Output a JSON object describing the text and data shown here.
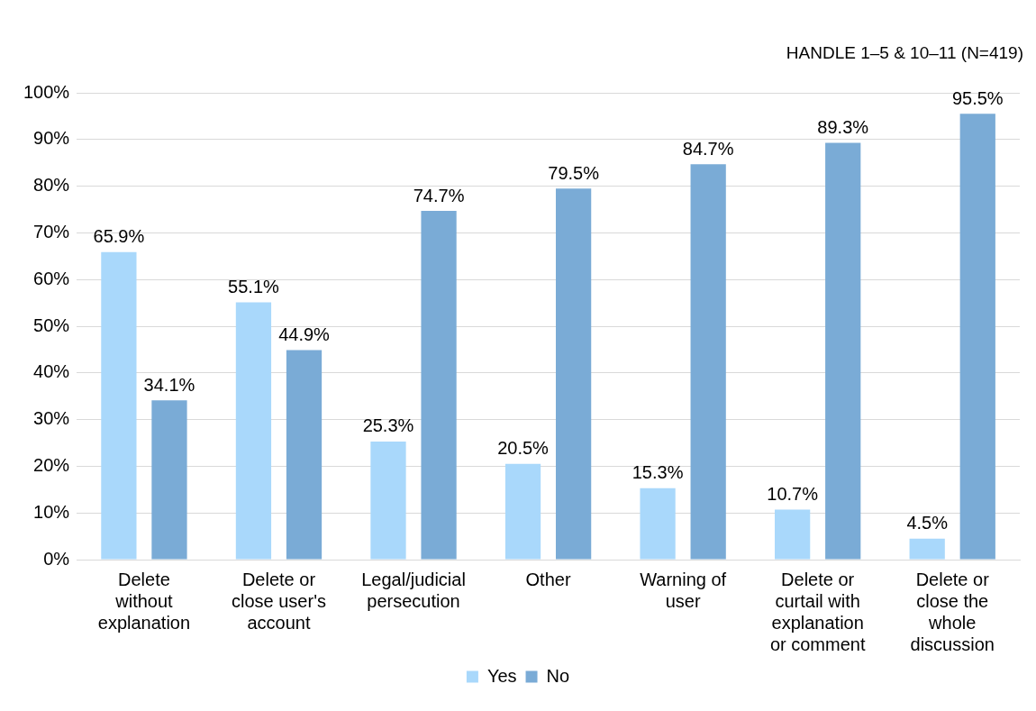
{
  "chart_data": {
    "type": "bar",
    "title": "HANDLE 1–5 & 10–11 (N=419)",
    "categories": [
      "Delete without explanation",
      "Delete or close user's account",
      "Legal/judicial persecution",
      "Other",
      "Warning of user",
      "Delete or curtail with explanation or comment",
      "Delete or close the whole discussion"
    ],
    "series": [
      {
        "name": "Yes",
        "color": "#a9d8fb",
        "values": [
          65.9,
          55.1,
          25.3,
          20.5,
          15.3,
          10.7,
          4.5
        ],
        "value_labels": [
          "65.9%",
          "55.1%",
          "25.3%",
          "20.5%",
          "15.3%",
          "10.7%",
          "4.5%"
        ]
      },
      {
        "name": "No",
        "color": "#7aabd6",
        "values": [
          34.1,
          44.9,
          74.7,
          79.5,
          84.7,
          89.3,
          95.5
        ],
        "value_labels": [
          "34.1%",
          "44.9%",
          "74.7%",
          "79.5%",
          "84.7%",
          "89.3%",
          "95.5%"
        ]
      }
    ],
    "ylim": [
      0,
      100
    ],
    "yticks": [
      {
        "value": 0,
        "label": "0%"
      },
      {
        "value": 10,
        "label": "10%"
      },
      {
        "value": 20,
        "label": "20%"
      },
      {
        "value": 30,
        "label": "30%"
      },
      {
        "value": 40,
        "label": "40%"
      },
      {
        "value": 50,
        "label": "50%"
      },
      {
        "value": 60,
        "label": "60%"
      },
      {
        "value": 70,
        "label": "70%"
      },
      {
        "value": 80,
        "label": "80%"
      },
      {
        "value": 90,
        "label": "90%"
      },
      {
        "value": 100,
        "label": "100%"
      }
    ],
    "grid": "y",
    "legend": "bottom"
  }
}
